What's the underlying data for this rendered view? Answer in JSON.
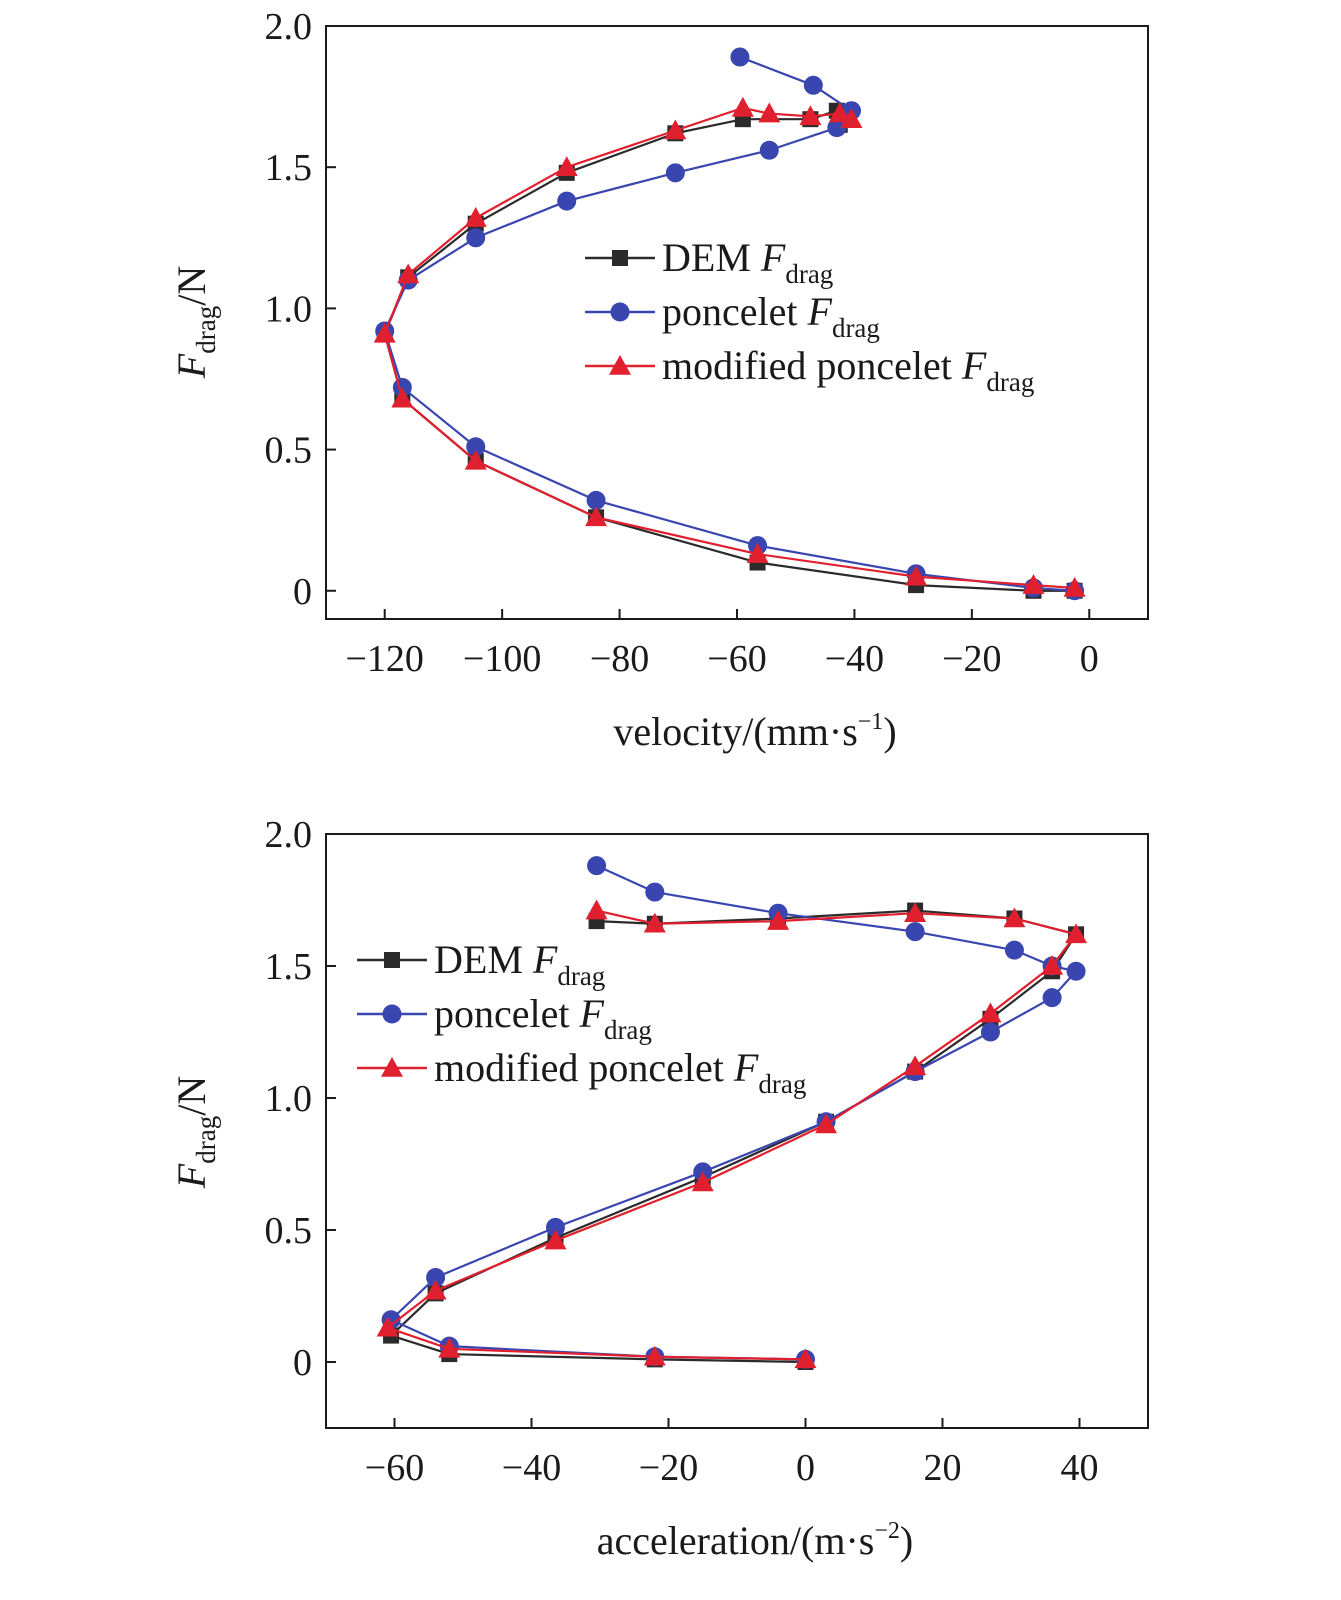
{
  "chart_data": [
    {
      "type": "line",
      "xlabel": "velocity/(mm·s−1)",
      "xlabel_parts": {
        "main": "velocity/(mm·s",
        "sup": "−1",
        "close": ")"
      },
      "ylabel": "Fdrag/N",
      "ylabel_parts": {
        "italic": "F",
        "sub": "drag",
        "rest": "/N"
      },
      "xlim": [
        -130,
        10
      ],
      "ylim": [
        -0.1,
        2.0
      ],
      "xticks": [
        -120,
        -100,
        -80,
        -60,
        -40,
        -20,
        0
      ],
      "xtick_labels": [
        "−120",
        "−100",
        "−80",
        "−60",
        "−40",
        "−20",
        "0"
      ],
      "yticks": [
        0,
        0.5,
        1.0,
        1.5,
        2.0
      ],
      "ytick_labels": [
        "0",
        "0.5",
        "1.0",
        "1.5",
        "2.0"
      ],
      "legend_position": "center-right",
      "series": [
        {
          "name": "DEM Fdrag",
          "legend_main": "DEM ",
          "legend_italic": "F",
          "legend_sub": "drag",
          "marker": "square",
          "color": "#2b2b2b",
          "x": [
            -2.5,
            -9.5,
            -29.5,
            -56.5,
            -84,
            -104.5,
            -117,
            -120,
            -116,
            -104.5,
            -89,
            -70.5,
            -59,
            -47.5,
            -43,
            -42.5
          ],
          "y": [
            0.0,
            0.0,
            0.02,
            0.1,
            0.26,
            0.46,
            0.68,
            0.91,
            1.11,
            1.3,
            1.48,
            1.62,
            1.67,
            1.67,
            1.7,
            1.65
          ]
        },
        {
          "name": "poncelet Fdrag",
          "legend_main": "poncelet ",
          "legend_italic": "F",
          "legend_sub": "drag",
          "marker": "circle",
          "color": "#3a46b0",
          "x": [
            -2.5,
            -9.5,
            -29.5,
            -56.5,
            -84,
            -104.5,
            -117,
            -120,
            -116,
            -104.5,
            -89,
            -70.5,
            -54.5,
            -43,
            -40.5,
            -47,
            -59.5
          ],
          "y": [
            0.0,
            0.01,
            0.06,
            0.16,
            0.32,
            0.51,
            0.72,
            0.92,
            1.1,
            1.25,
            1.38,
            1.48,
            1.56,
            1.64,
            1.7,
            1.79,
            1.89
          ]
        },
        {
          "name": "modified poncelet Fdrag",
          "legend_main": "modified poncelet ",
          "legend_italic": "F",
          "legend_sub": "drag",
          "marker": "triangle",
          "color": "#e0202e",
          "x": [
            -2.5,
            -9.5,
            -29.5,
            -56.5,
            -84,
            -104.5,
            -117,
            -120,
            -116,
            -104.5,
            -89,
            -70.5,
            -59,
            -54.5,
            -47.5,
            -42.5,
            -40.5
          ],
          "y": [
            0.01,
            0.02,
            0.05,
            0.13,
            0.26,
            0.46,
            0.68,
            0.91,
            1.12,
            1.32,
            1.5,
            1.63,
            1.71,
            1.69,
            1.68,
            1.69,
            1.67
          ]
        }
      ]
    },
    {
      "type": "line",
      "xlabel": "acceleration/(m·s−2)",
      "xlabel_parts": {
        "main": "acceleration/(m·s",
        "sup": "−2",
        "close": ")"
      },
      "ylabel": "Fdrag/N",
      "ylabel_parts": {
        "italic": "F",
        "sub": "drag",
        "rest": "/N"
      },
      "xlim": [
        -70,
        50
      ],
      "ylim": [
        -0.25,
        2.0
      ],
      "xticks": [
        -60,
        -40,
        -20,
        0,
        20,
        40
      ],
      "xtick_labels": [
        "−60",
        "−40",
        "−20",
        "0",
        "20",
        "40"
      ],
      "yticks": [
        0,
        0.5,
        1.0,
        1.5,
        2.0
      ],
      "ytick_labels": [
        "0",
        "0.5",
        "1.0",
        "1.5",
        "2.0"
      ],
      "legend_position": "upper-left",
      "series": [
        {
          "name": "DEM Fdrag",
          "legend_main": "DEM ",
          "legend_italic": "F",
          "legend_sub": "drag",
          "marker": "square",
          "color": "#2b2b2b",
          "x": [
            0,
            -22,
            -52,
            -60.5,
            -54,
            -36.5,
            -15,
            3,
            16,
            27,
            36,
            39.5,
            30.5,
            16,
            -4,
            -22,
            -30.5
          ],
          "y": [
            0.0,
            0.01,
            0.03,
            0.1,
            0.26,
            0.47,
            0.7,
            0.91,
            1.1,
            1.3,
            1.48,
            1.62,
            1.68,
            1.71,
            1.68,
            1.66,
            1.67
          ]
        },
        {
          "name": "poncelet Fdrag",
          "legend_main": "poncelet ",
          "legend_italic": "F",
          "legend_sub": "drag",
          "marker": "circle",
          "color": "#3a46b0",
          "x": [
            0,
            -22,
            -52,
            -60.5,
            -54,
            -36.5,
            -15,
            3,
            16,
            27,
            36,
            39.5,
            36,
            30.5,
            16,
            -4,
            -22,
            -30.5
          ],
          "y": [
            0.01,
            0.02,
            0.06,
            0.16,
            0.32,
            0.51,
            0.72,
            0.91,
            1.1,
            1.25,
            1.38,
            1.48,
            1.5,
            1.56,
            1.63,
            1.7,
            1.78,
            1.88
          ]
        },
        {
          "name": "modified poncelet Fdrag",
          "legend_main": "modified poncelet ",
          "legend_italic": "F",
          "legend_sub": "drag",
          "marker": "triangle",
          "color": "#e0202e",
          "x": [
            0,
            -22,
            -52,
            -61,
            -54,
            -36.5,
            -15,
            3,
            16,
            27,
            36,
            39.5,
            30.5,
            16,
            -4,
            -22,
            -30.5
          ],
          "y": [
            0.01,
            0.02,
            0.05,
            0.13,
            0.27,
            0.46,
            0.68,
            0.9,
            1.12,
            1.32,
            1.5,
            1.62,
            1.68,
            1.7,
            1.67,
            1.66,
            1.71
          ]
        }
      ]
    }
  ]
}
